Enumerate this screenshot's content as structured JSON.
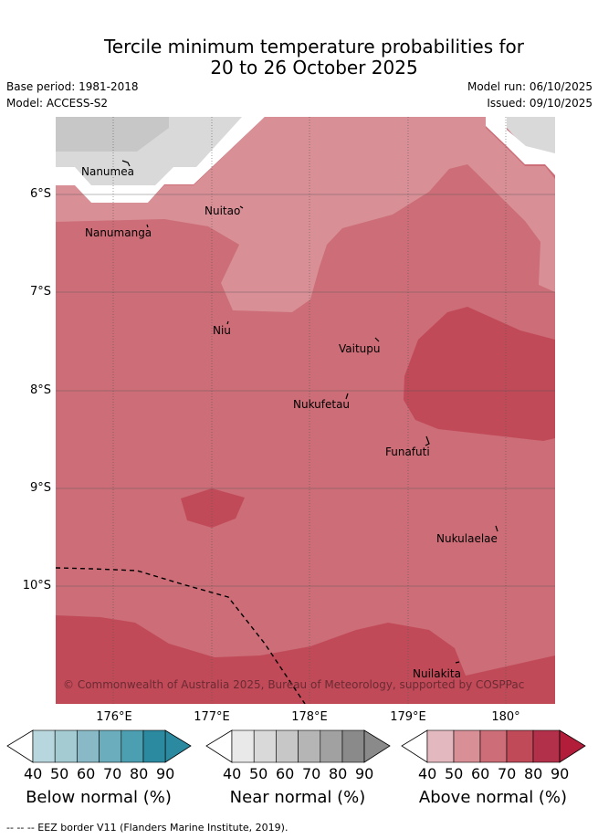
{
  "title_line1": "Tercile minimum temperature probabilities for",
  "title_line2": "20 to 26 October 2025",
  "base_period": "Base period: 1981-2018",
  "model": "Model: ACCESS-S2",
  "model_run": "Model run: 06/10/2025",
  "issued": "Issued: 09/10/2025",
  "map": {
    "lat_labels": [
      "6°S",
      "7°S",
      "8°S",
      "9°S",
      "10°S"
    ],
    "lon_labels": [
      "176°E",
      "177°E",
      "178°E",
      "179°E",
      "180°"
    ],
    "places": [
      "Nanumea",
      "Nuitao",
      "Nanumanga",
      "Niu",
      "Vaitupu",
      "Nukufetau",
      "Funafuti",
      "Nukulaelae",
      "Nuilakita"
    ],
    "copyright": "© Commonwealth of Australia 2025, Bureau of Meteorology, supported by COSPPac"
  },
  "legends": [
    {
      "label": "Below normal (%)",
      "ticks": [
        "40",
        "50",
        "60",
        "70",
        "80",
        "90"
      ],
      "colors": [
        "#b8d6dd",
        "#a4cbd1",
        "#89b9c6",
        "#6badbc",
        "#4b9fb0",
        "#2c8aa0"
      ]
    },
    {
      "label": "Near normal (%)",
      "ticks": [
        "40",
        "50",
        "60",
        "70",
        "80",
        "90"
      ],
      "colors": [
        "#e9e9e9",
        "#d9d9d9",
        "#c7c7c7",
        "#b5b5b5",
        "#a1a1a1",
        "#8a8a8a"
      ]
    },
    {
      "label": "Above normal (%)",
      "ticks": [
        "40",
        "50",
        "60",
        "70",
        "80",
        "90"
      ],
      "colors": [
        "#e4b8bf",
        "#d88f96",
        "#cc6d77",
        "#c14a58",
        "#b23049",
        "#b21d3a"
      ]
    }
  ],
  "footnote": "--  --  -- EEZ border V11 (Flanders Marine Institute, 2019)."
}
